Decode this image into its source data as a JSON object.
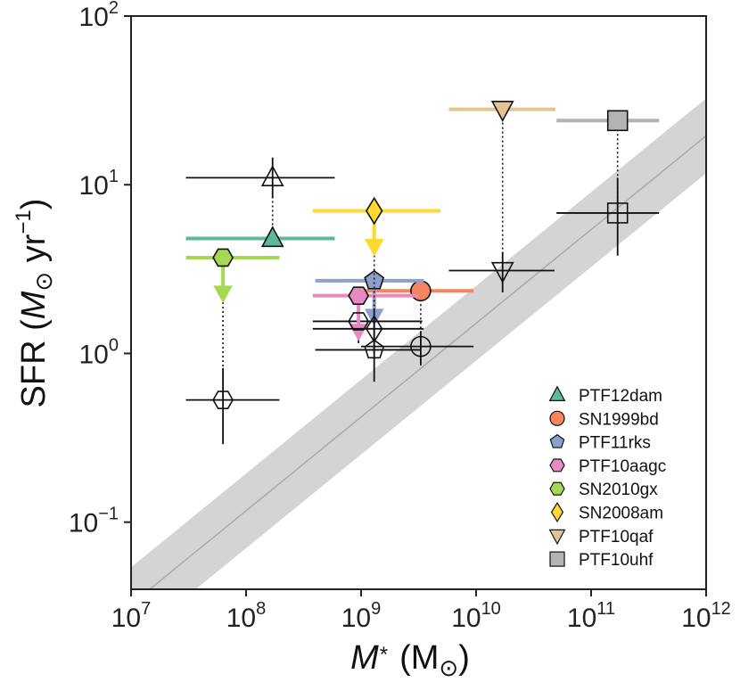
{
  "chart_data": {
    "type": "scatter",
    "x_scale": "log",
    "y_scale": "log",
    "xlim": [
      10000000,
      1000000000000
    ],
    "ylim": [
      0.04,
      100
    ],
    "x_ticks": [
      {
        "value": 10000000,
        "base": "10",
        "exp": "7"
      },
      {
        "value": 100000000,
        "base": "10",
        "exp": "8"
      },
      {
        "value": 1000000000,
        "base": "10",
        "exp": "9"
      },
      {
        "value": 10000000000,
        "base": "10",
        "exp": "10"
      },
      {
        "value": 100000000000,
        "base": "10",
        "exp": "11"
      },
      {
        "value": 1000000000000,
        "base": "10",
        "exp": "12"
      }
    ],
    "y_ticks": [
      {
        "value": 0.1,
        "base": "10",
        "exp": "−1"
      },
      {
        "value": 1,
        "base": "10",
        "exp": "0"
      },
      {
        "value": 10,
        "base": "10",
        "exp": "1"
      },
      {
        "value": 100,
        "base": "10",
        "exp": "2"
      }
    ],
    "xlabel": {
      "m": "M",
      "sub": "*",
      "units": "(M",
      "sun": "⊙",
      "close": ")"
    },
    "ylabel": {
      "pre": "SFR (",
      "m": "M",
      "sun": "⊙",
      "mid": " yr",
      "exp": "−1",
      "close": ")"
    },
    "main_sequence": {
      "x": [
        10000000,
        1000000000000
      ],
      "y": [
        0.0325,
        19.5
      ],
      "band_lo": [
        0.0195,
        11.7
      ],
      "band_hi": [
        0.054,
        32.5
      ],
      "line_color": "#aaaaaa",
      "band_color": "#d4d4d4"
    },
    "series": [
      {
        "name": "PTF12dam",
        "marker": "triangle-up",
        "color": "#5fb89a",
        "filled": {
          "x": 170000000,
          "y": 4.8,
          "xerr": [
            30000000,
            590000000
          ],
          "upper_limit": false
        },
        "open": {
          "x": 170000000,
          "y": 11,
          "xerr": [
            30000000,
            590000000
          ],
          "yerr": [
            8.3,
            14.5
          ]
        }
      },
      {
        "name": "SN1999bd",
        "marker": "circle",
        "color": "#f4855e",
        "filled": {
          "x": 3300000000,
          "y": 2.35,
          "xerr": [
            1000000000,
            9500000000
          ],
          "upper_limit": false
        },
        "open": {
          "x": 3300000000,
          "y": 1.1,
          "xerr": [
            1000000000,
            9500000000
          ],
          "yerr": [
            0.85,
            1.35
          ]
        }
      },
      {
        "name": "PTF11rks",
        "marker": "pentagon",
        "color": "#8ca0cb",
        "filled": {
          "x": 1300000000,
          "y": 2.7,
          "xerr": [
            400000000,
            3500000000
          ],
          "upper_limit": true
        },
        "open": {
          "x": 1300000000,
          "y": 1.05,
          "xerr": [
            400000000,
            3300000000
          ],
          "yerr": [
            0.68,
            1.55
          ]
        }
      },
      {
        "name": "PTF10aagc",
        "marker": "hexagon",
        "color": "#e78ac3",
        "filled": {
          "x": 950000000,
          "y": 2.2,
          "xerr": [
            380000000,
            3100000000
          ],
          "upper_limit": true
        },
        "open": {
          "x": 950000000,
          "y": 1.55,
          "xerr": [
            380000000,
            3400000000
          ],
          "yerr": [
            1.15,
            1.95
          ]
        }
      },
      {
        "name": "SN2010gx",
        "marker": "hexagon",
        "color": "#a6d854",
        "filled": {
          "x": 63000000,
          "y": 3.7,
          "xerr": [
            30000000,
            195000000
          ],
          "upper_limit": true
        },
        "open": {
          "x": 63000000,
          "y": 0.53,
          "xerr": [
            30000000,
            195000000
          ],
          "yerr": [
            0.29,
            0.82
          ]
        }
      },
      {
        "name": "SN2008am",
        "marker": "diamond",
        "color": "#ffd92f",
        "filled": {
          "x": 1300000000,
          "y": 7.0,
          "xerr": [
            380000000,
            4900000000
          ],
          "upper_limit": true
        },
        "open": {
          "x": 1300000000,
          "y": 1.4,
          "xerr": [
            380000000,
            3500000000
          ],
          "yerr": [
            1.0,
            1.85
          ]
        }
      },
      {
        "name": "PTF10qaf",
        "marker": "triangle-down",
        "color": "#e5c494",
        "filled": {
          "x": 17000000000,
          "y": 28,
          "xerr": [
            5800000000,
            49000000000
          ],
          "upper_limit": false
        },
        "open": {
          "x": 17000000000,
          "y": 3.1,
          "xerr": [
            5800000000,
            48000000000
          ],
          "yerr": [
            2.3,
            4.0
          ]
        }
      },
      {
        "name": "PTF10uhf",
        "marker": "square",
        "color": "#b3b3b3",
        "filled": {
          "x": 170000000000,
          "y": 24,
          "xerr": [
            50000000000,
            390000000000
          ],
          "upper_limit": false
        },
        "open": {
          "x": 170000000000,
          "y": 6.8,
          "xerr": [
            50000000000,
            390000000000
          ],
          "yerr": [
            3.8,
            11
          ]
        }
      }
    ],
    "legend_position": "lower-right",
    "legend": [
      "PTF12dam",
      "SN1999bd",
      "PTF11rks",
      "PTF10aagc",
      "SN2010gx",
      "SN2008am",
      "PTF10qaf",
      "PTF10uhf"
    ],
    "grid": false
  }
}
